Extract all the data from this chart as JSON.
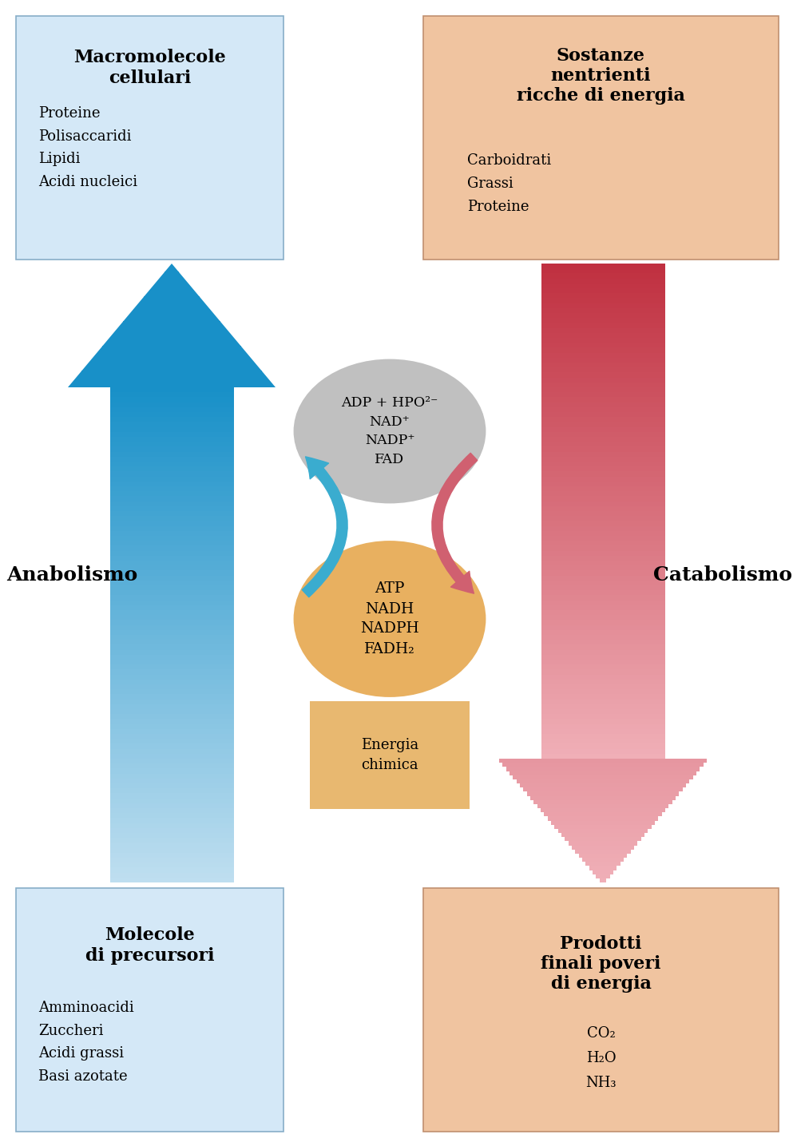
{
  "bg_color": "#ffffff",
  "box_blue_light": "#d4e8f7",
  "box_blue_border": "#88aec8",
  "box_orange_light": "#f0c4a0",
  "box_orange_border": "#c09070",
  "arrow_blue_top": "#1890c8",
  "arrow_blue_bot": "#c0dff0",
  "arrow_red_top": "#c03040",
  "arrow_red_bot": "#f0b0b8",
  "ellipse_gray": "#c0c0c0",
  "ellipse_orange": "#e8b060",
  "box_energy_orange": "#e8b870",
  "circ_blue": "#3aaccf",
  "circ_red": "#d06070",
  "top_left_title": "Macromolecole\ncellulari",
  "top_left_items": "Proteine\nPolisaccaridi\nLipidi\nAcidi nucleici",
  "top_right_title": "Sostanze\nnentrienti\nricche di energia",
  "top_right_items": "Carboidrati\nGrassi\nProteine",
  "bottom_left_title": "Molecole\ndi precursori",
  "bottom_left_items": "Amminoacidi\nZuccheri\nAcidi grassi\nBasi azotate",
  "bottom_right_title": "Prodotti\nfinali poveri\ndi energia",
  "bottom_right_items": "CO₂\nH₂O\nNH₃",
  "label_anabolismo": "Anabolismo",
  "label_catabolismo": "Catabolismo",
  "gray_ellipse_text": "ADP + HPO²⁻\nNAD⁺\nNADP⁺\nFAD",
  "orange_ellipse_text": "ATP\nNADH\nNADPH\nFADH₂",
  "energy_box_text": "Energia\nchimica",
  "top_right_title_correct": "Sostanze\nnentrienti\nricche di energia"
}
